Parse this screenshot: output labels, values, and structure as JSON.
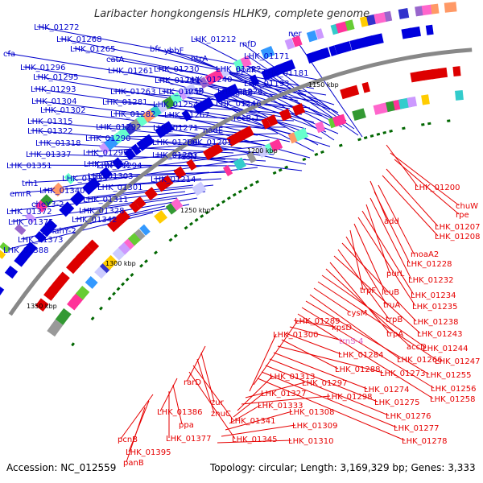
{
  "title": "Laribacter hongkongensis HLHK9, complete genome",
  "footer": {
    "accession": "Accession: NC_012559",
    "topology": "Topology: circular; Length: 3,169,329 bp; Genes: 3,333"
  },
  "colors": {
    "forward": "#0000cc",
    "reverse": "#e60000",
    "backbone": "#777777",
    "kbp": "#000000"
  },
  "kbp_marks": [
    "1150 kbp",
    "1200 kbp",
    "1250 kbp",
    "1300 kbp",
    "1350 kbp"
  ],
  "forward_labels": [
    "LHK_01272",
    "LHK_01268",
    "LHK_01265",
    "cfa",
    "LHK_01296",
    "LHK_01295",
    "LHK_01293",
    "LHK_01304",
    "LHK_01302",
    "LHK_01315",
    "LHK_01322",
    "LHK_01318",
    "LHK_01337",
    "LHK_01351",
    "trh1",
    "emrR",
    "cheY3-2",
    "LHK_01372",
    "LHK_01375",
    "LHK_01373",
    "LHK_01388",
    "catA",
    "LHK_01261",
    "LHK_01263",
    "LHK_01281",
    "LHK_01282",
    "LHK_01292",
    "LHK_01290",
    "LHK_01299",
    "LHK_01319",
    "LHK_01335",
    "LHK_01340",
    "LHK_01294",
    "LHK_01303",
    "LHK_01301",
    "LHK_01311",
    "LHK_01328",
    "LHK_01342",
    "nahY-2",
    "bfr",
    "ybbF",
    "LHK_01230",
    "LHK_01241",
    "LHK_01259",
    "LHK_01254",
    "LHK_01267",
    "LHK_01271",
    "LHK_01280",
    "LHK_01283",
    "LHK_01214",
    "LHK_01212",
    "htrA",
    "LHK_01222",
    "LHK_01240",
    "actP",
    "LHK_01226",
    "LHK_01246",
    "nadE",
    "LHK_01201",
    "recN",
    "rnfD",
    "ppnK",
    "glnB",
    "LHK_01193",
    "recB-1",
    "LHK_01171",
    "LHK_01181",
    "ner"
  ],
  "reverse_labels": [
    "LHK_01200",
    "chuW",
    "rpe",
    "LHK_01207",
    "LHK_01208",
    "add",
    "moaA2",
    "LHK_01228",
    "LHK_01232",
    "purL",
    "LHK_01234",
    "LHK_01235",
    "leuB",
    "trpF",
    "truA",
    "LHK_01238",
    "trpB",
    "LHK_01243",
    "trpA",
    "accD",
    "LHK_01244",
    "LHK_01247",
    "cysM",
    "LHK_01266",
    "LHK_01255",
    "LHK_01256",
    "LHK_01258",
    "kpsD",
    "trnS-4",
    "LHK_01284",
    "LHK_01288",
    "LHK_01273",
    "LHK_01274",
    "LHK_01275",
    "LHK_01276",
    "LHK_01277",
    "LHK_01278",
    "LHK_01289",
    "LHK_01300",
    "LHK_01297",
    "LHK_01298",
    "LHK_01313",
    "LHK_01327",
    "LHK_01333",
    "LHK_01308",
    "LHK_01309",
    "LHK_01310",
    "rarD",
    "zur",
    "znuC",
    "LHK_01341",
    "LHK_01345",
    "LHK_01386",
    "ppa",
    "LHK_01377",
    "pcnB",
    "LHK_01395",
    "panB"
  ]
}
